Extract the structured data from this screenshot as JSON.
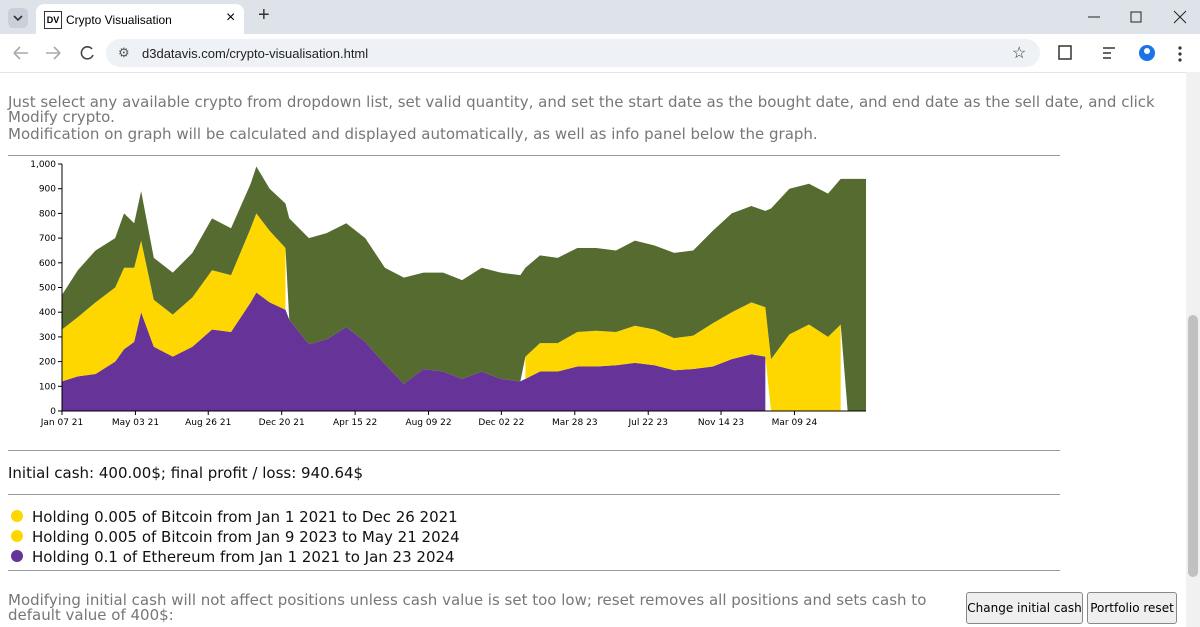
{
  "browser": {
    "tab_title": "Crypto Visualisation",
    "url": "d3datavis.com/crypto-visualisation.html"
  },
  "intro": [
    "Just select any available crypto from dropdown list, set valid quantity, and set the start date as the bought date, and end date as the sell date, and click Modify crypto.",
    "Modification on graph will be calculated and displayed automatically, as well as info panel below the graph."
  ],
  "chart_data": {
    "type": "stacked-area",
    "x": [
      "2021-01-07",
      "2021-02-01",
      "2021-03-01",
      "2021-04-01",
      "2021-04-15",
      "2021-05-01",
      "2021-05-12",
      "2021-06-01",
      "2021-07-01",
      "2021-08-01",
      "2021-09-01",
      "2021-10-01",
      "2021-11-01",
      "2021-11-10",
      "2021-12-01",
      "2021-12-26",
      "2022-01-01",
      "2022-02-01",
      "2022-03-01",
      "2022-04-01",
      "2022-05-01",
      "2022-06-01",
      "2022-07-01",
      "2022-08-01",
      "2022-09-01",
      "2022-10-01",
      "2022-11-01",
      "2022-12-01",
      "2023-01-01",
      "2023-01-09",
      "2023-02-01",
      "2023-03-01",
      "2023-04-01",
      "2023-05-01",
      "2023-06-01",
      "2023-07-01",
      "2023-08-01",
      "2023-09-01",
      "2023-10-01",
      "2023-11-01",
      "2023-12-01",
      "2024-01-01",
      "2024-01-23",
      "2024-02-01",
      "2024-03-01",
      "2024-04-01",
      "2024-05-01",
      "2024-05-21",
      "2024-06-01",
      "2024-06-30"
    ],
    "series": [
      {
        "color": "#663399",
        "values": [
          120,
          140,
          150,
          200,
          250,
          280,
          400,
          260,
          220,
          260,
          330,
          320,
          440,
          480,
          440,
          410,
          370,
          270,
          290,
          340,
          280,
          190,
          110,
          170,
          160,
          130,
          160,
          130,
          120,
          130,
          160,
          160,
          180,
          180,
          185,
          195,
          185,
          165,
          170,
          180,
          210,
          230,
          220,
          null,
          null,
          null,
          null,
          null,
          null,
          null
        ]
      },
      {
        "color": "#ffd700",
        "values": [
          210,
          240,
          290,
          300,
          330,
          300,
          290,
          190,
          170,
          200,
          240,
          230,
          300,
          320,
          290,
          250,
          null,
          null,
          null,
          null,
          null,
          null,
          null,
          null,
          null,
          null,
          null,
          null,
          null,
          90,
          115,
          115,
          140,
          145,
          135,
          150,
          145,
          130,
          135,
          175,
          190,
          210,
          200,
          210,
          310,
          350,
          300,
          350,
          null,
          null
        ]
      },
      {
        "color": "#556b2f",
        "values": [
          140,
          190,
          210,
          200,
          220,
          180,
          200,
          170,
          170,
          180,
          210,
          190,
          180,
          190,
          170,
          180,
          410,
          430,
          430,
          420,
          420,
          390,
          430,
          390,
          400,
          400,
          420,
          430,
          430,
          360,
          355,
          345,
          340,
          335,
          330,
          345,
          340,
          345,
          345,
          375,
          400,
          390,
          390,
          610,
          590,
          570,
          580,
          590,
          940,
          940
        ]
      }
    ],
    "xlim": [
      "2021-01-07",
      "2024-06-30"
    ],
    "xticks": [
      {
        "value": "2021-01-07",
        "label": "Jan 07 21"
      },
      {
        "value": "2021-05-03",
        "label": "May 03 21"
      },
      {
        "value": "2021-08-26",
        "label": "Aug 26 21"
      },
      {
        "value": "2021-12-20",
        "label": "Dec 20 21"
      },
      {
        "value": "2022-04-15",
        "label": "Apr 15 22"
      },
      {
        "value": "2022-08-09",
        "label": "Aug 09 22"
      },
      {
        "value": "2022-12-02",
        "label": "Dec 02 22"
      },
      {
        "value": "2023-03-28",
        "label": "Mar 28 23"
      },
      {
        "value": "2023-07-22",
        "label": "Jul 22 23"
      },
      {
        "value": "2023-11-14",
        "label": "Nov 14 23"
      },
      {
        "value": "2024-03-09",
        "label": "Mar 09 24"
      }
    ],
    "ylim": [
      0,
      1000
    ],
    "yticks": [
      0,
      100,
      200,
      300,
      400,
      500,
      600,
      700,
      800,
      900,
      {
        "value": 1000,
        "label": "1,000"
      }
    ]
  },
  "summary": "Initial cash: 400.00$; final profit / loss: 940.64$",
  "holdings": [
    {
      "text": "Holding 0.005 of Bitcoin from Jan 1 2021 to Dec 26 2021",
      "color": "#ffd700"
    },
    {
      "text": "Holding 0.005 of Bitcoin from Jan 9 2023 to May 21 2024",
      "color": "#ffd700"
    },
    {
      "text": "Holding 0.1 of Ethereum from Jan 1 2021 to Jan 23 2024",
      "color": "#663399"
    }
  ],
  "note": "Modifying initial cash will not affect positions unless cash value is set too low; reset removes all positions and sets cash to default value of 400$:",
  "buttons": [
    "Change initial cash",
    "Portfolio reset"
  ]
}
